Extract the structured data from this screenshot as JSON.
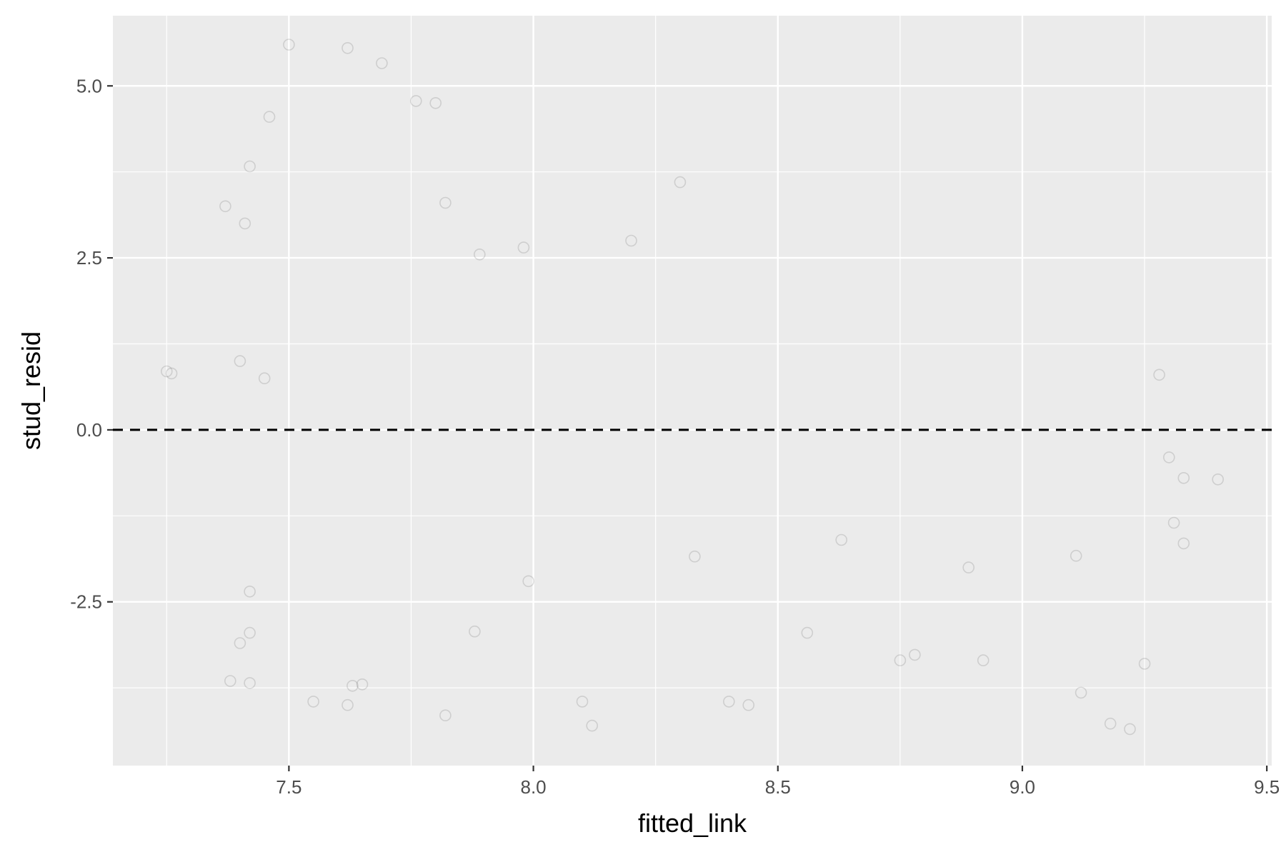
{
  "chart_data": {
    "type": "scatter",
    "xlabel": "fitted_link",
    "ylabel": "stud_resid",
    "xlim": [
      7.14,
      9.51
    ],
    "ylim": [
      -4.88,
      6.02
    ],
    "x_ticks": [
      7.5,
      8.0,
      8.5,
      9.0,
      9.5
    ],
    "x_tick_labels": [
      "7.5",
      "8.0",
      "8.5",
      "9.0",
      "9.5"
    ],
    "y_ticks": [
      -2.5,
      0.0,
      2.5,
      5.0
    ],
    "y_tick_labels": [
      "-2.5",
      "0.0",
      "2.5",
      "5.0"
    ],
    "grid": true,
    "reference_line": {
      "y": 0,
      "style": "dashed",
      "color": "#000000"
    },
    "marker": {
      "shape": "open-circle",
      "color": "#000000",
      "opacity": 0.12
    },
    "colors": {
      "panel": "#ebebeb",
      "grid": "#ffffff",
      "text": "#4d4d4d"
    },
    "series": [
      {
        "points": [
          [
            7.42,
            -3.68
          ],
          [
            7.38,
            -3.65
          ],
          [
            7.4,
            -3.1
          ],
          [
            7.42,
            -2.95
          ],
          [
            7.65,
            -3.7
          ],
          [
            7.63,
            -3.72
          ],
          [
            7.82,
            -4.15
          ],
          [
            7.42,
            -2.35
          ],
          [
            7.88,
            -2.93
          ],
          [
            7.99,
            -2.2
          ],
          [
            8.33,
            -1.84
          ],
          [
            8.44,
            -4.0
          ],
          [
            8.92,
            -3.35
          ],
          [
            9.12,
            -3.82
          ],
          [
            9.18,
            -4.27
          ],
          [
            9.22,
            -4.35
          ],
          [
            9.25,
            -3.4
          ],
          [
            8.56,
            -2.95
          ],
          [
            8.63,
            -1.6
          ],
          [
            8.89,
            -2.0
          ],
          [
            9.11,
            -1.83
          ],
          [
            7.41,
            3.0
          ],
          [
            7.5,
            5.6
          ],
          [
            7.62,
            5.55
          ],
          [
            7.69,
            5.33
          ],
          [
            7.46,
            4.55
          ],
          [
            7.42,
            3.83
          ],
          [
            7.37,
            3.25
          ],
          [
            7.82,
            3.3
          ],
          [
            7.89,
            2.55
          ],
          [
            7.98,
            2.65
          ],
          [
            8.2,
            2.75
          ],
          [
            8.3,
            3.6
          ],
          [
            7.76,
            4.78
          ],
          [
            7.8,
            4.75
          ],
          [
            7.25,
            0.85
          ],
          [
            7.26,
            0.82
          ],
          [
            7.4,
            1.0
          ],
          [
            7.45,
            0.75
          ],
          [
            9.28,
            0.8
          ],
          [
            9.4,
            -0.72
          ],
          [
            9.33,
            -0.7
          ],
          [
            9.3,
            -0.4
          ],
          [
            9.33,
            -1.65
          ],
          [
            9.31,
            -1.35
          ],
          [
            8.78,
            -3.27
          ],
          [
            8.75,
            -3.35
          ],
          [
            8.4,
            -3.95
          ],
          [
            8.12,
            -4.3
          ],
          [
            8.1,
            -3.95
          ],
          [
            7.62,
            -4.0
          ],
          [
            7.55,
            -3.95
          ]
        ]
      }
    ]
  }
}
